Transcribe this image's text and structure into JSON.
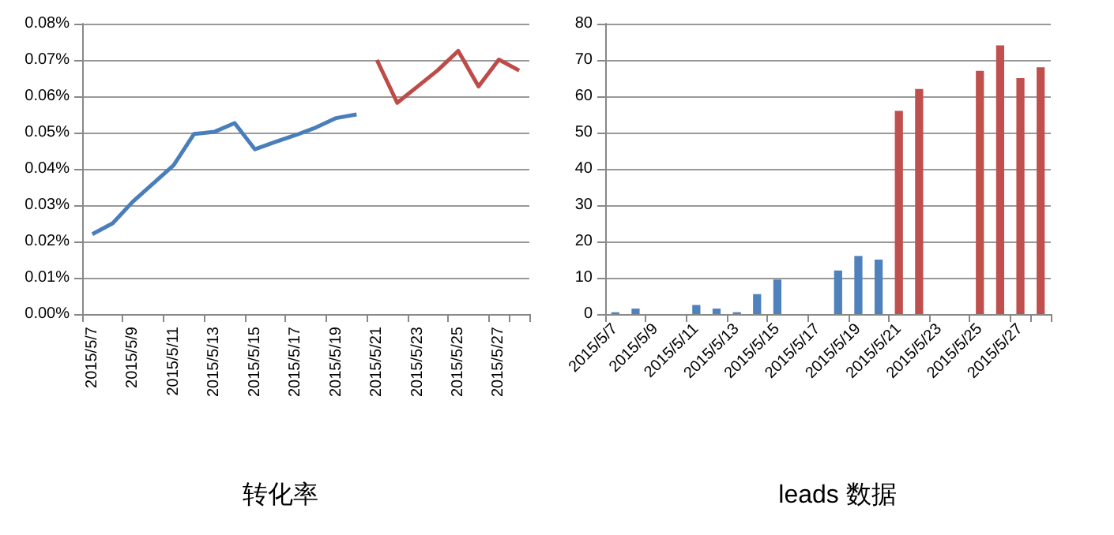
{
  "chart_data": [
    {
      "type": "line",
      "title": "转化率",
      "categories": [
        "2015/5/7",
        null,
        "2015/5/9",
        null,
        "2015/5/11",
        null,
        "2015/5/13",
        null,
        "2015/5/15",
        null,
        "2015/5/17",
        null,
        "2015/5/19",
        null,
        "2015/5/21",
        null,
        "2015/5/23",
        null,
        "2015/5/25",
        null,
        "2015/5/27",
        null
      ],
      "series": [
        {
          "color": "#4a7ebb",
          "values": [
            0.022,
            0.025,
            0.031,
            0.036,
            0.041,
            0.0496,
            0.0502,
            0.0526,
            0.0454,
            0.0474,
            0.0493,
            0.0514,
            0.054,
            0.055,
            null,
            null,
            null,
            null,
            null,
            null,
            null,
            null
          ]
        },
        {
          "color": "#be4b48",
          "values": [
            null,
            null,
            null,
            null,
            null,
            null,
            null,
            null,
            null,
            null,
            null,
            null,
            null,
            null,
            0.07,
            0.0582,
            0.0627,
            0.0672,
            0.0725,
            0.0627,
            0.0701,
            0.0671
          ]
        }
      ],
      "ylim": [
        0,
        0.08
      ],
      "yticks": [
        {
          "value": 0,
          "label": "0.00%"
        },
        {
          "value": 0.01,
          "label": "0.01%"
        },
        {
          "value": 0.02,
          "label": "0.02%"
        },
        {
          "value": 0.03,
          "label": "0.03%"
        },
        {
          "value": 0.04,
          "label": "0.04%"
        },
        {
          "value": 0.05,
          "label": "0.05%"
        },
        {
          "value": 0.06,
          "label": "0.06%"
        },
        {
          "value": 0.07,
          "label": "0.07%"
        },
        {
          "value": 0.08,
          "label": "0.08%"
        }
      ],
      "grid": "y",
      "marker": "none",
      "line_style": "solid"
    },
    {
      "type": "bar",
      "title": "leads 数据",
      "categories": [
        "2015/5/7",
        null,
        "2015/5/9",
        null,
        "2015/5/11",
        null,
        "2015/5/13",
        null,
        "2015/5/15",
        null,
        "2015/5/17",
        null,
        "2015/5/19",
        null,
        "2015/5/21",
        null,
        "2015/5/23",
        null,
        "2015/5/25",
        null,
        "2015/5/27",
        null
      ],
      "values": [
        0.5,
        1.5,
        null,
        null,
        2.5,
        1.5,
        0.5,
        5.5,
        9.5,
        null,
        null,
        12,
        16,
        15,
        56,
        62,
        null,
        null,
        67,
        74,
        65,
        68
      ],
      "colors": [
        "#4f81bd",
        "#4f81bd",
        "#4f81bd",
        "#4f81bd",
        "#4f81bd",
        "#4f81bd",
        "#4f81bd",
        "#4f81bd",
        "#4f81bd",
        "#4f81bd",
        "#4f81bd",
        "#4f81bd",
        "#4f81bd",
        "#4f81bd",
        "#c0504d",
        "#c0504d",
        "#c0504d",
        "#c0504d",
        "#c0504d",
        "#c0504d",
        "#c0504d",
        "#c0504d"
      ],
      "ylim": [
        0,
        80
      ],
      "yticks": [
        0,
        10,
        20,
        30,
        40,
        50,
        60,
        70,
        80
      ],
      "grid": "y"
    }
  ]
}
